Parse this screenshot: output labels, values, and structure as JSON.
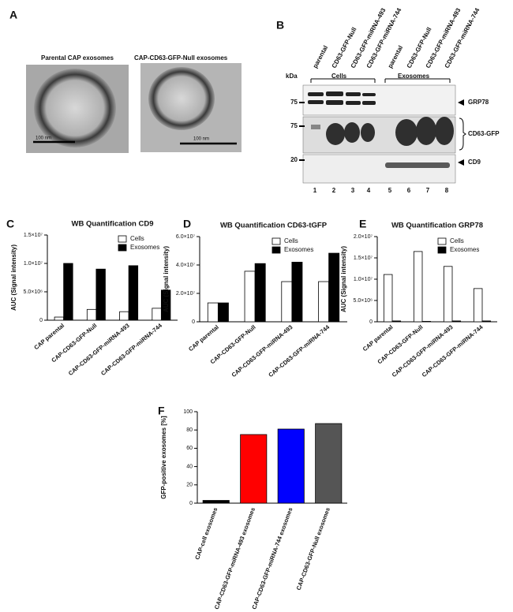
{
  "panel_a": {
    "letter": "A",
    "images": [
      {
        "caption": "Parental CAP exosomes",
        "scale": "100 nm"
      },
      {
        "caption": "CAP-CD63-GFP-Null exosomes",
        "scale": "100 nm"
      }
    ]
  },
  "panel_b": {
    "letter": "B",
    "kda_label": "kDa",
    "lane_headers": [
      "parental",
      "CD63-GFP-Null",
      "CD63-GFP-miRNA-493",
      "CD63-GFP-miRNA-744",
      "parental",
      "CD63-GFP-Null",
      "CD63-GFP-miRNA-493",
      "CD63-GFP-miRNA-744"
    ],
    "groups": [
      "Cells",
      "Exosomes"
    ],
    "markers": [
      "75",
      "75",
      "20"
    ],
    "bands": [
      "GRP78",
      "CD63-GFP",
      "CD9"
    ],
    "lane_numbers": [
      "1",
      "2",
      "3",
      "4",
      "5",
      "6",
      "7",
      "8"
    ]
  },
  "chart_data": [
    {
      "type": "bar",
      "label": "C",
      "title": "WB Quantification CD9",
      "ylabel": "AUC (Signal intensity)",
      "categories": [
        "CAP parental",
        "CAP-CD63-GFP-Null",
        "CAP-CD63-GFP-miRNA-493",
        "CAP-CD63-GFP-miRNA-744"
      ],
      "series": [
        {
          "name": "Cells",
          "color": "#ffffff",
          "values": [
            550000,
            1900000,
            1500000,
            2100000
          ]
        },
        {
          "name": "Exosomes",
          "color": "#000000",
          "values": [
            10000000,
            9000000,
            9600000,
            5300000
          ]
        }
      ],
      "ylim": [
        0,
        15000000
      ],
      "yticks": [
        0,
        {
          "value": 5000000,
          "label": "5.0×10⁶"
        },
        {
          "value": 10000000,
          "label": "1.0×10⁷"
        },
        {
          "value": 15000000,
          "label": "1.5×10⁷"
        }
      ]
    },
    {
      "type": "bar",
      "label": "D",
      "title": "WB Quantification CD63-tGFP",
      "ylabel": "AUC (Signal intensity)",
      "categories": [
        "CAP parental",
        "CAP-CD63-GFP-Null",
        "CAP-CD63-GFP-miRNA-493",
        "CAP-CD63-GFP-miRNA-744"
      ],
      "series": [
        {
          "name": "Cells",
          "color": "#ffffff",
          "values": [
            13300000,
            35600000,
            28300000,
            28300000
          ]
        },
        {
          "name": "Exosomes",
          "color": "#000000",
          "values": [
            13300000,
            41000000,
            42000000,
            48300000
          ]
        }
      ],
      "ylim": [
        0,
        60000000
      ],
      "yticks": [
        0,
        {
          "value": 20000000,
          "label": "2.0×10⁷"
        },
        {
          "value": 40000000,
          "label": "4.0×10⁷"
        },
        {
          "value": 60000000,
          "label": "6.0×10⁷"
        }
      ]
    },
    {
      "type": "bar",
      "label": "E",
      "title": "WB Quantification GRP78",
      "ylabel": "AUC (Signal intensity)",
      "categories": [
        "CAP parental",
        "CAP-CD63-GFP-Null",
        "CAP-CD63-GFP-miRNA-493",
        "CAP-CD63-GFP-miRNA-744"
      ],
      "series": [
        {
          "name": "Cells",
          "color": "#ffffff",
          "values": [
            11100000,
            16500000,
            13000000,
            7800000
          ]
        },
        {
          "name": "Exosomes",
          "color": "#000000",
          "values": [
            200000,
            100000,
            200000,
            200000
          ]
        }
      ],
      "ylim": [
        0,
        20000000
      ],
      "yticks": [
        0,
        {
          "value": 5000000,
          "label": "5.0×10⁶"
        },
        {
          "value": 10000000,
          "label": "1.0×10⁷"
        },
        {
          "value": 15000000,
          "label": "1.5×10⁷"
        },
        {
          "value": 20000000,
          "label": "2.0×10⁷"
        }
      ]
    },
    {
      "type": "bar",
      "label": "F",
      "ylabel": "GFP-positive exosomes [%]",
      "categories": [
        "CAP-cell exosomes",
        "CAP-CD63-GFP-miRNA-493 exosomes",
        "CAP-CD63-GFP-miRNA-744 exosomes",
        "CAP-CD63-GFP-Null exosomes"
      ],
      "values": [
        3,
        75,
        81,
        87
      ],
      "colors": [
        "#000000",
        "#ff0000",
        "#0000ff",
        "#555555"
      ],
      "ylim": [
        0,
        100
      ],
      "yticks": [
        0,
        20,
        40,
        60,
        80,
        100
      ]
    }
  ]
}
